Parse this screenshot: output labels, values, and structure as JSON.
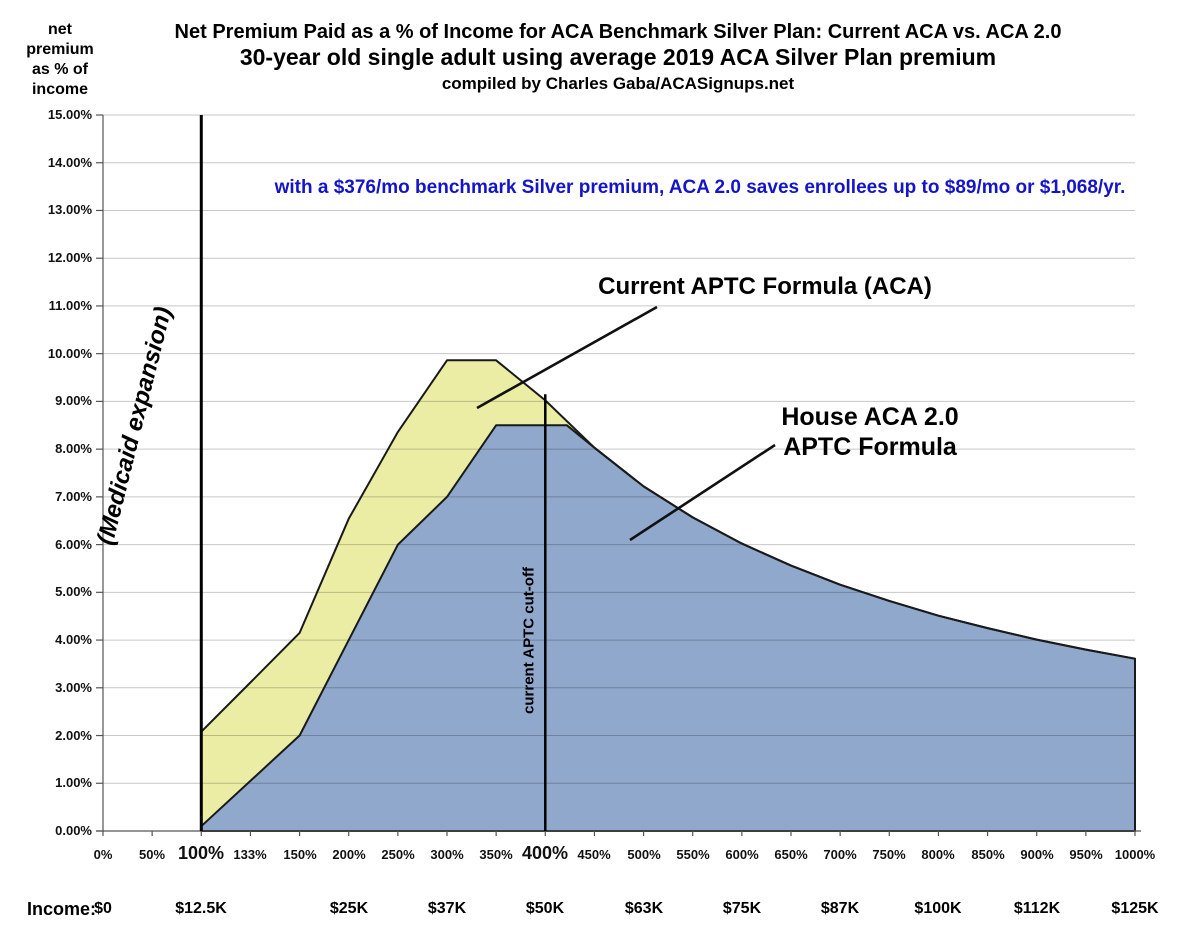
{
  "page": {
    "title_line1": "Net Premium Paid as a % of Income for ACA Benchmark Silver Plan: Current ACA vs. ACA 2.0",
    "title_line2": "30-year old single adult using average 2019 ACA Silver Plan premium",
    "title_line3": "compiled by Charles Gaba/ACASignups.net"
  },
  "y_axis_corner_label": {
    "line1": "net",
    "line2": "premium",
    "line3": "as % of",
    "line4": "income"
  },
  "annotation": {
    "text": "with a $376/mo benchmark Silver premium, ACA 2.0 saves enrollees up to $89/mo or $1,068/yr.",
    "color": "#1414C8"
  },
  "callouts": {
    "current_aca": "Current APTC Formula (ACA)",
    "house_line1": "House ACA 2.0",
    "house_line2": "APTC Formula",
    "medicaid": "(Medicaid expansion)",
    "cutoff": "current APTC cut-off"
  },
  "income_row": {
    "label": "Income:",
    "values": [
      {
        "pct": 0,
        "text": "$0"
      },
      {
        "pct": 100,
        "text": "$12.5K"
      },
      {
        "pct": 200,
        "text": "$25K"
      },
      {
        "pct": 300,
        "text": "$37K"
      },
      {
        "pct": 400,
        "text": "$50K"
      },
      {
        "pct": 500,
        "text": "$63K"
      },
      {
        "pct": 600,
        "text": "$75K"
      },
      {
        "pct": 700,
        "text": "$87K"
      },
      {
        "pct": 800,
        "text": "$100K"
      },
      {
        "pct": 900,
        "text": "$112K"
      },
      {
        "pct": 1000,
        "text": "$125K"
      }
    ]
  },
  "chart_data": {
    "type": "area",
    "title": "Net Premium Paid as a % of Income for ACA Benchmark Silver Plan: Current ACA vs. ACA 2.0",
    "x_axis": {
      "categories": [
        "0%",
        "50%",
        "100%",
        "133%",
        "150%",
        "200%",
        "250%",
        "300%",
        "350%",
        "400%",
        "450%",
        "500%",
        "550%",
        "600%",
        "650%",
        "700%",
        "750%",
        "800%",
        "850%",
        "900%",
        "950%",
        "1000%"
      ],
      "emphasized": [
        "100%",
        "400%"
      ]
    },
    "y_axis": {
      "min": 0,
      "max": 15,
      "step": 1,
      "tick_labels": [
        "0.00%",
        "1.00%",
        "2.00%",
        "3.00%",
        "4.00%",
        "5.00%",
        "6.00%",
        "7.00%",
        "8.00%",
        "9.00%",
        "10.00%",
        "11.00%",
        "12.00%",
        "13.00%",
        "14.00%",
        "15.00%"
      ]
    },
    "grid": true,
    "series": [
      {
        "name": "Current APTC Formula (ACA)",
        "fill": "#ECEDA4",
        "points": [
          [
            100,
            2.08
          ],
          [
            133,
            3.11
          ],
          [
            150,
            4.15
          ],
          [
            200,
            6.54
          ],
          [
            250,
            8.36
          ],
          [
            300,
            9.86
          ],
          [
            350,
            9.86
          ],
          [
            400,
            9.02
          ],
          [
            450,
            8.03
          ],
          [
            500,
            7.22
          ],
          [
            550,
            6.57
          ],
          [
            600,
            6.02
          ],
          [
            650,
            5.56
          ],
          [
            700,
            5.16
          ],
          [
            750,
            4.82
          ],
          [
            800,
            4.51
          ],
          [
            850,
            4.25
          ],
          [
            900,
            4.01
          ],
          [
            950,
            3.8
          ],
          [
            1000,
            3.61
          ]
        ]
      },
      {
        "name": "House ACA 2.0 APTC Formula",
        "fill": "#8FA8CB",
        "points": [
          [
            100,
            0.1
          ],
          [
            133,
            1.05
          ],
          [
            150,
            2.0
          ],
          [
            200,
            4.0
          ],
          [
            250,
            6.0
          ],
          [
            300,
            7.0
          ],
          [
            350,
            8.5
          ],
          [
            400,
            8.5
          ],
          [
            422,
            8.5
          ],
          [
            450,
            8.03
          ],
          [
            500,
            7.22
          ],
          [
            550,
            6.57
          ],
          [
            600,
            6.02
          ],
          [
            650,
            5.56
          ],
          [
            700,
            5.16
          ],
          [
            750,
            4.82
          ],
          [
            800,
            4.51
          ],
          [
            850,
            4.25
          ],
          [
            900,
            4.01
          ],
          [
            950,
            3.8
          ],
          [
            1000,
            3.61
          ]
        ]
      }
    ],
    "vertical_markers": [
      {
        "pct": 100,
        "from": 0,
        "to": 15,
        "label": "(Medicaid expansion)"
      },
      {
        "pct": 400,
        "from": 0,
        "to": 9.15,
        "label": "current APTC cut-off"
      }
    ],
    "colors": {
      "outline": "#1A1A1A",
      "gridline": "rgba(0,0,0,0.22)",
      "axis": "#555555"
    }
  }
}
